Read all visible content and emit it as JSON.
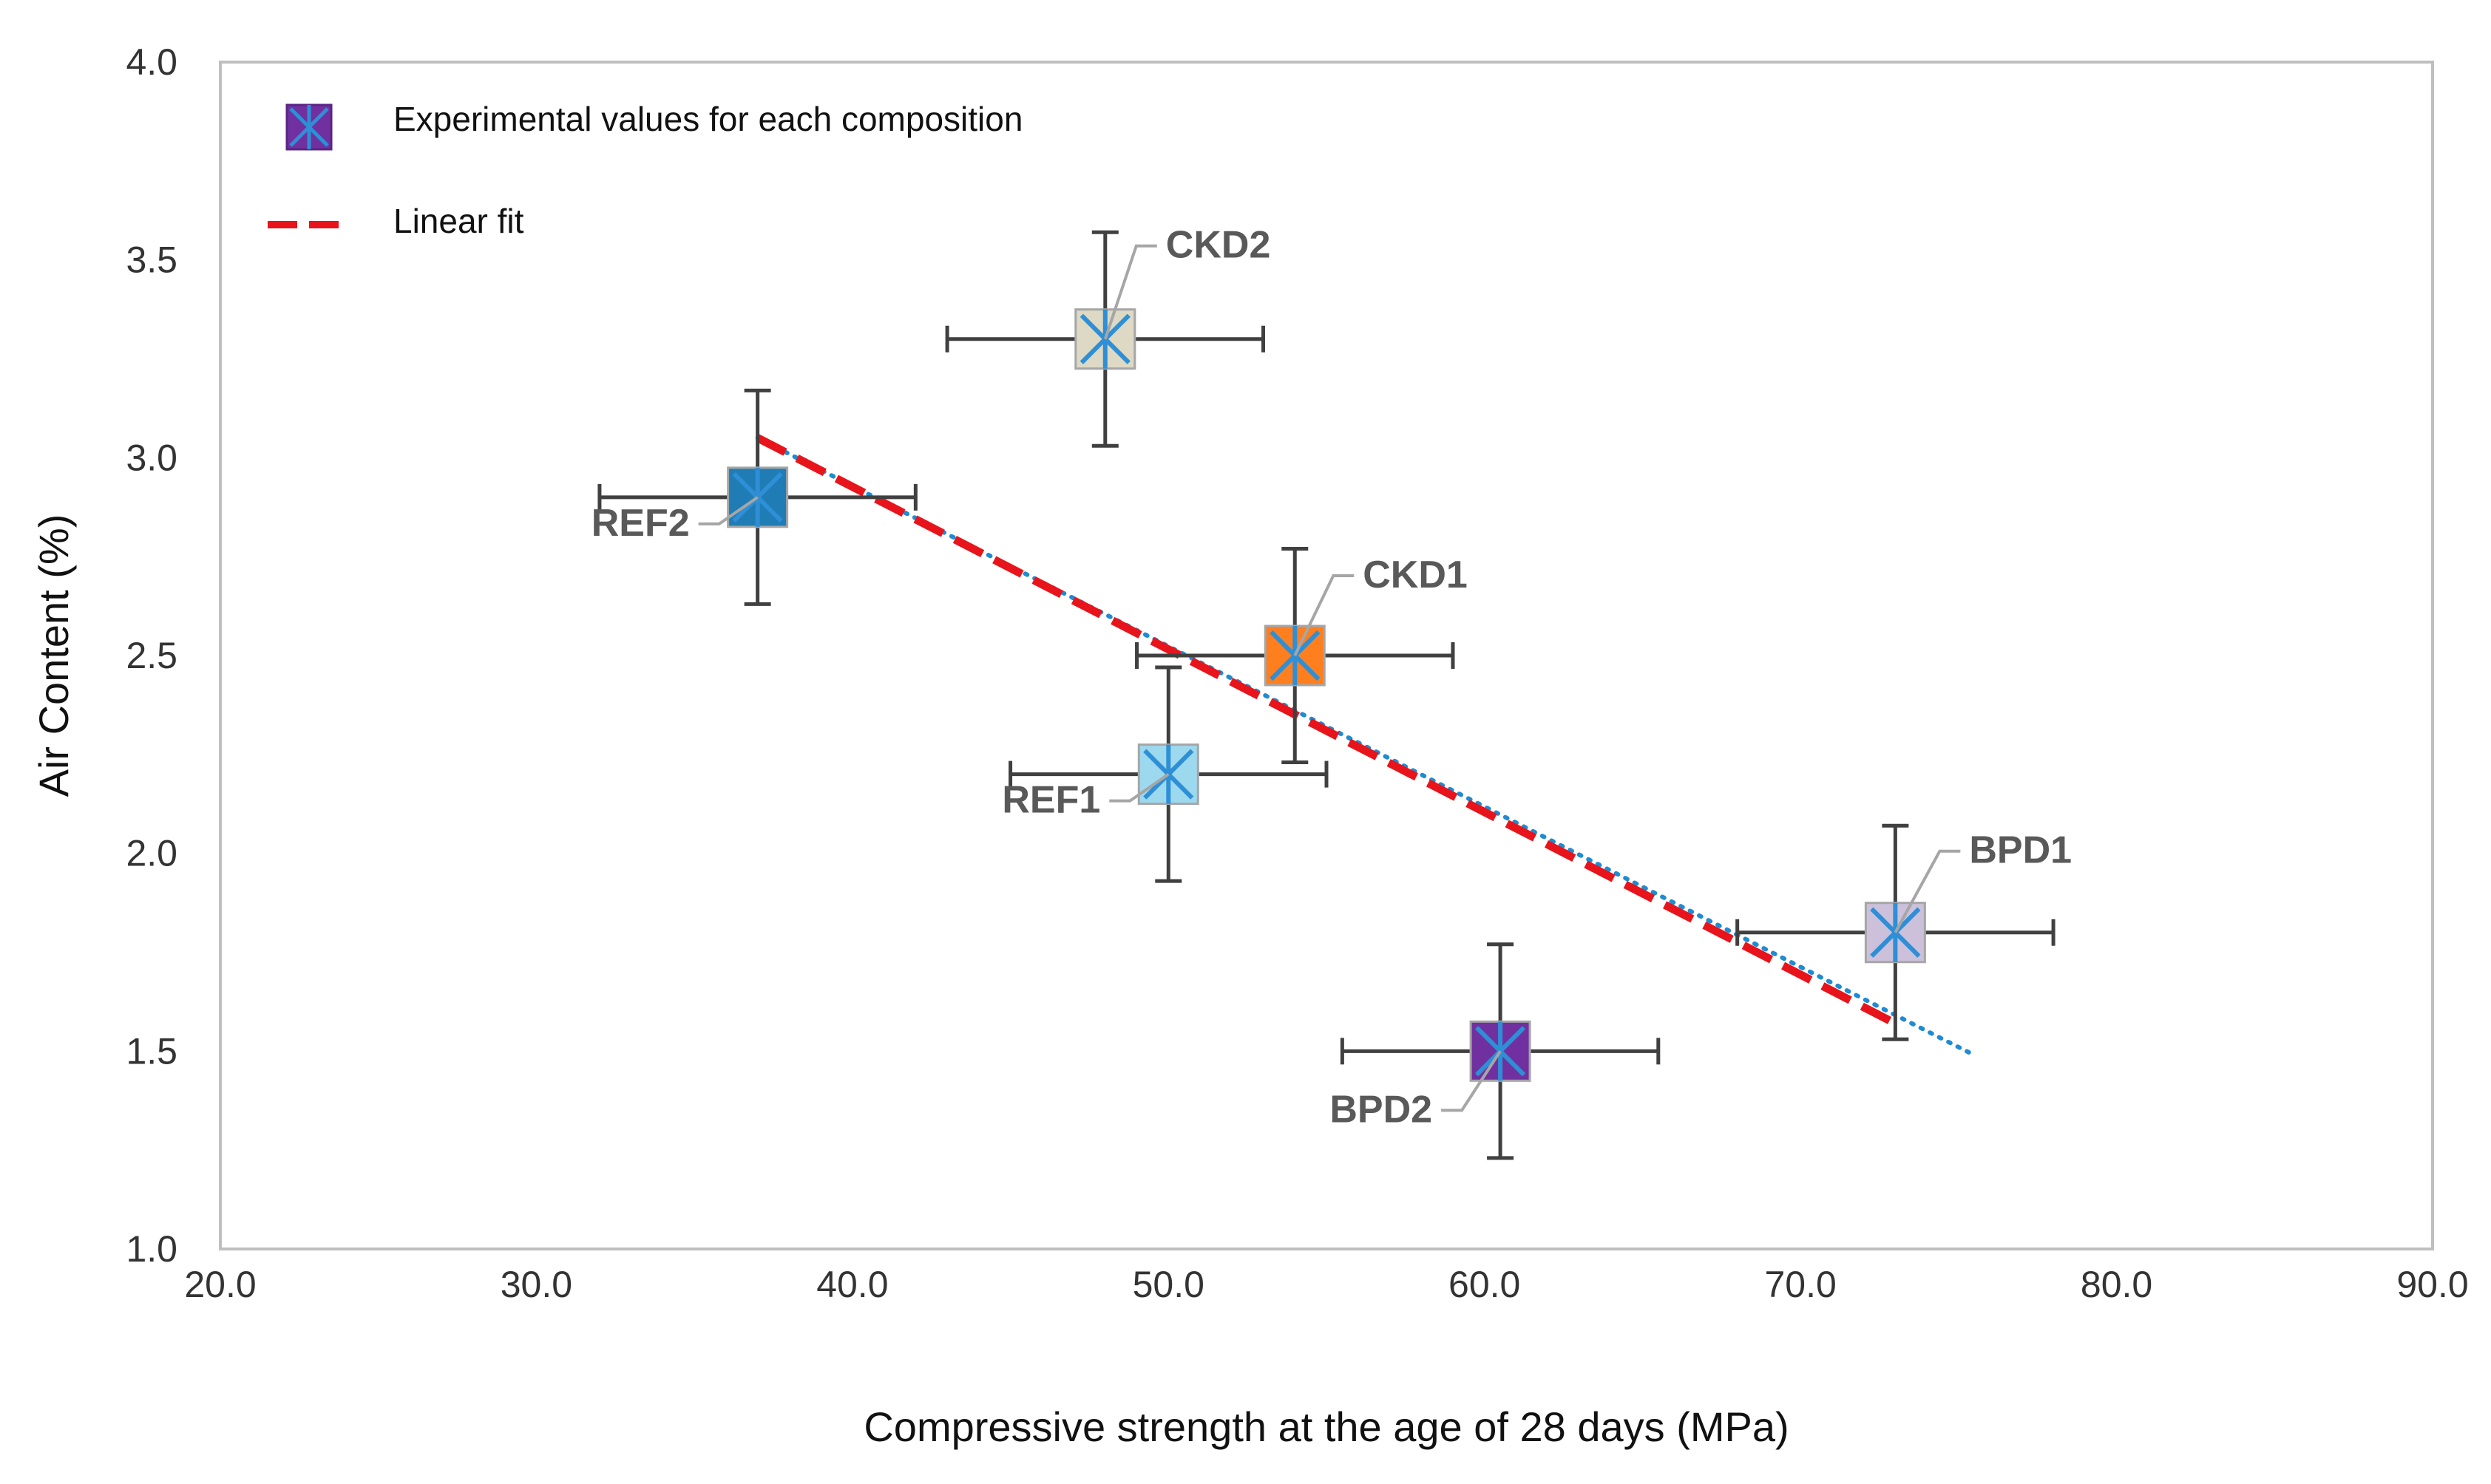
{
  "chart_data": {
    "type": "scatter",
    "title": "",
    "xlabel": "Compressive strength at the age of 28 days (MPa)",
    "ylabel": "Air Content (%)",
    "xlim": [
      20.0,
      90.0
    ],
    "ylim": [
      1.0,
      4.0
    ],
    "x_ticks": [
      "20.0",
      "30.0",
      "40.0",
      "50.0",
      "60.0",
      "70.0",
      "80.0",
      "90.0"
    ],
    "y_ticks": [
      "1.0",
      "1.5",
      "2.0",
      "2.5",
      "3.0",
      "3.5",
      "4.0"
    ],
    "grid": false,
    "legend": [
      {
        "label": "Experimental values for each composition",
        "kind": "marker",
        "color": "#7030A0"
      },
      {
        "label": "Linear fit",
        "kind": "line",
        "color": "#E8141B"
      }
    ],
    "series": [
      {
        "name": "Experimental values for each composition",
        "points": [
          {
            "label": "REF1",
            "x": 50.0,
            "y": 2.2,
            "x_err": 5.0,
            "y_err": 0.27,
            "color": "#9DD9EE"
          },
          {
            "label": "REF2",
            "x": 37.0,
            "y": 2.9,
            "x_err": 5.0,
            "y_err": 0.27,
            "color": "#1F7CB5"
          },
          {
            "label": "CKD1",
            "x": 54.0,
            "y": 2.5,
            "x_err": 5.0,
            "y_err": 0.27,
            "color": "#FF7F1E"
          },
          {
            "label": "CKD2",
            "x": 48.0,
            "y": 3.3,
            "x_err": 5.0,
            "y_err": 0.27,
            "color": "#DDD9C4"
          },
          {
            "label": "BPD1",
            "x": 73.0,
            "y": 1.8,
            "x_err": 5.0,
            "y_err": 0.27,
            "color": "#CCC0DA"
          },
          {
            "label": "BPD2",
            "x": 60.5,
            "y": 1.5,
            "x_err": 5.0,
            "y_err": 0.27,
            "color": "#7030A0"
          }
        ]
      },
      {
        "name": "Linear fit",
        "fit_line": {
          "x_start": 37.0,
          "y_start": 3.05,
          "x_end": 73.0,
          "y_end": 1.57
        },
        "trendline": {
          "x_start": 37.0,
          "y_start": 3.05,
          "x_end": 75.5,
          "y_end": 1.49
        },
        "color": "#E8141B",
        "trend_color": "#1F8BD1"
      }
    ]
  }
}
